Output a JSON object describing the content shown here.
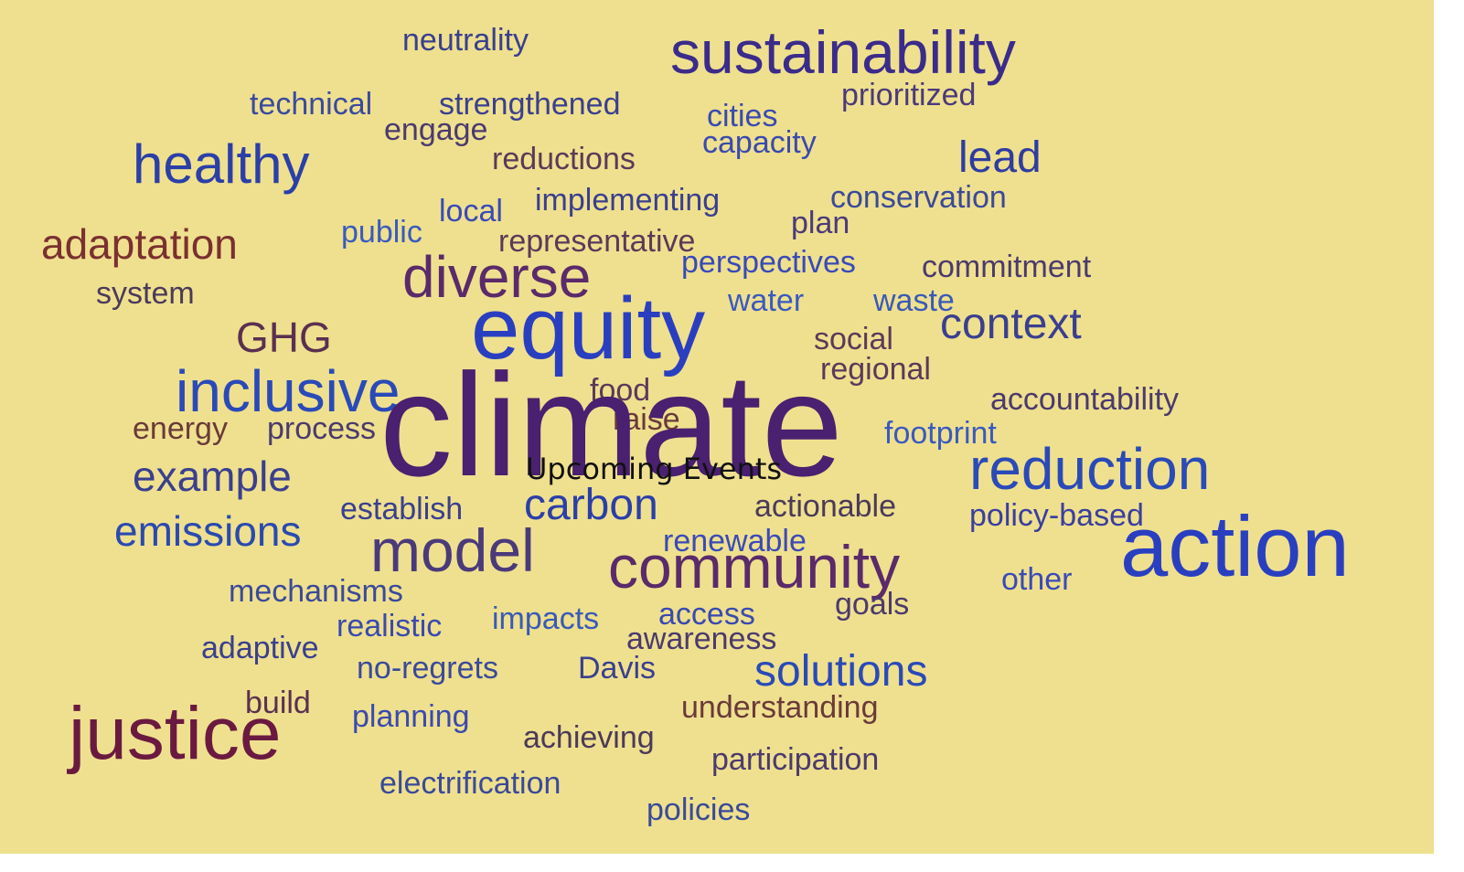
{
  "words": [
    "neutrality",
    "sustainability",
    "technical",
    "strengthened",
    "cities",
    "prioritized",
    "engage",
    "healthy",
    "reductions",
    "capacity",
    "lead",
    "local",
    "implementing",
    "conservation",
    "plan",
    "adaptation",
    "public",
    "representative",
    "perspectives",
    "commitment",
    "diverse",
    "system",
    "water",
    "waste",
    "equity",
    "context",
    "GHG",
    "social",
    "regional",
    "food",
    "inclusive",
    "accountability",
    "energy",
    "process",
    "raise",
    "climate",
    "footprint",
    "reduction",
    "example",
    "establish",
    "carbon",
    "actionable",
    "policy-based",
    "emissions",
    "renewable",
    "action",
    "model",
    "community",
    "other",
    "mechanisms",
    "goals",
    "realistic",
    "impacts",
    "access",
    "awareness",
    "adaptive",
    "no-regrets",
    "Davis",
    "solutions",
    "build",
    "understanding",
    "justice",
    "planning",
    "achieving",
    "participation",
    "electrification",
    "policies"
  ],
  "overlay": "Upcoming Events"
}
